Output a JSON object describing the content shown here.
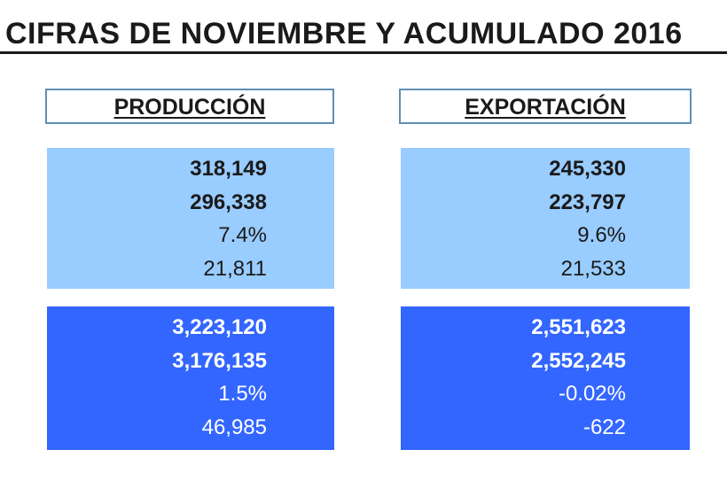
{
  "title": "CIFRAS DE NOVIEMBRE Y ACUMULADO 2016",
  "headers": {
    "produccion": "PRODUCCIÓN",
    "exportacion": "EXPORTACIÓN"
  },
  "produccion": {
    "monthly": [
      "318,149",
      "296,338",
      "7.4%",
      "21,811"
    ],
    "cumulative": [
      "3,223,120",
      "3,176,135",
      "1.5%",
      "46,985"
    ]
  },
  "exportacion": {
    "monthly": [
      "245,330",
      "223,797",
      "9.6%",
      "21,533"
    ],
    "cumulative": [
      "2,551,623",
      "2,552,245",
      "-0.02%",
      "-622"
    ]
  },
  "colors": {
    "light_block": "#99ccff",
    "dark_block": "#3366ff",
    "header_border": "#5f8fb4"
  }
}
